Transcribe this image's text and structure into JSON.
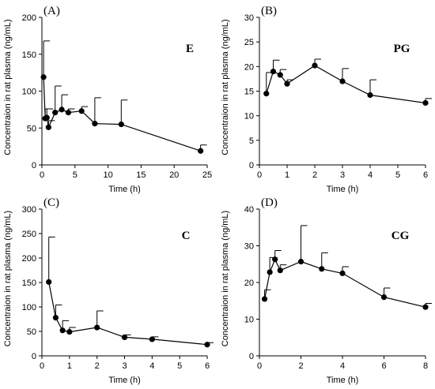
{
  "chart_data": [
    {
      "type": "line",
      "panel_label": "(A)",
      "tag": "E",
      "xlabel": "Time (h)",
      "ylabel": "Concentraion in rat plasma (ng/mL)",
      "xlim": [
        0,
        25
      ],
      "ylim": [
        0,
        200
      ],
      "xticks": [
        0,
        5,
        10,
        15,
        20,
        25
      ],
      "yticks": [
        0,
        50,
        100,
        150,
        200
      ],
      "x": [
        0.25,
        0.5,
        0.75,
        1,
        2,
        3,
        4,
        6,
        8,
        12,
        24
      ],
      "y": [
        119,
        63,
        64,
        51,
        71,
        75,
        71,
        73,
        56,
        55,
        19
      ],
      "error_upper": [
        168,
        76,
        76,
        60,
        107,
        95,
        76,
        79,
        91,
        88,
        27
      ]
    },
    {
      "type": "line",
      "panel_label": "(B)",
      "tag": "PG",
      "xlabel": "Time (h)",
      "ylabel": "Concentraion in rat plasma (ng/mL)",
      "xlim": [
        0,
        6
      ],
      "ylim": [
        0,
        30
      ],
      "xticks": [
        0,
        1,
        2,
        3,
        4,
        5,
        6
      ],
      "yticks": [
        0,
        5,
        10,
        15,
        20,
        25,
        30
      ],
      "x": [
        0.25,
        0.5,
        0.75,
        1,
        2,
        3,
        4,
        6
      ],
      "y": [
        14.5,
        19.0,
        18.3,
        16.5,
        20.2,
        17.0,
        14.2,
        12.6
      ],
      "error_upper": [
        18.8,
        21.3,
        19.4,
        17.3,
        21.5,
        19.6,
        17.3,
        13.5
      ]
    },
    {
      "type": "line",
      "panel_label": "(C)",
      "tag": "C",
      "xlabel": "Time (h)",
      "ylabel": "Concentraion in rat plasma (ng/mL)",
      "xlim": [
        0,
        6
      ],
      "ylim": [
        0,
        300
      ],
      "xticks": [
        0,
        1,
        2,
        3,
        4,
        5,
        6
      ],
      "yticks": [
        0,
        50,
        100,
        150,
        200,
        250,
        300
      ],
      "x": [
        0.25,
        0.5,
        0.75,
        1,
        2,
        3,
        4,
        6
      ],
      "y": [
        151,
        78,
        52,
        49,
        58,
        38,
        34,
        23
      ],
      "error_upper": [
        243,
        104,
        72,
        58,
        92,
        43,
        39,
        27
      ]
    },
    {
      "type": "line",
      "panel_label": "(D)",
      "tag": "CG",
      "xlabel": "Time (h)",
      "ylabel": "Concentraion in rat plasma (ng/mL)",
      "xlim": [
        0,
        8
      ],
      "ylim": [
        0,
        40
      ],
      "xticks": [
        0,
        2,
        4,
        6,
        8
      ],
      "yticks": [
        0,
        10,
        20,
        30,
        40
      ],
      "x": [
        0.25,
        0.5,
        0.75,
        1,
        2,
        3,
        4,
        6,
        8
      ],
      "y": [
        15.5,
        22.8,
        26.3,
        23.3,
        25.7,
        23.7,
        22.5,
        16.0,
        13.3
      ],
      "error_upper": [
        18.0,
        26.8,
        28.7,
        24.8,
        35.5,
        28.1,
        24.3,
        18.5,
        14.3
      ]
    }
  ]
}
